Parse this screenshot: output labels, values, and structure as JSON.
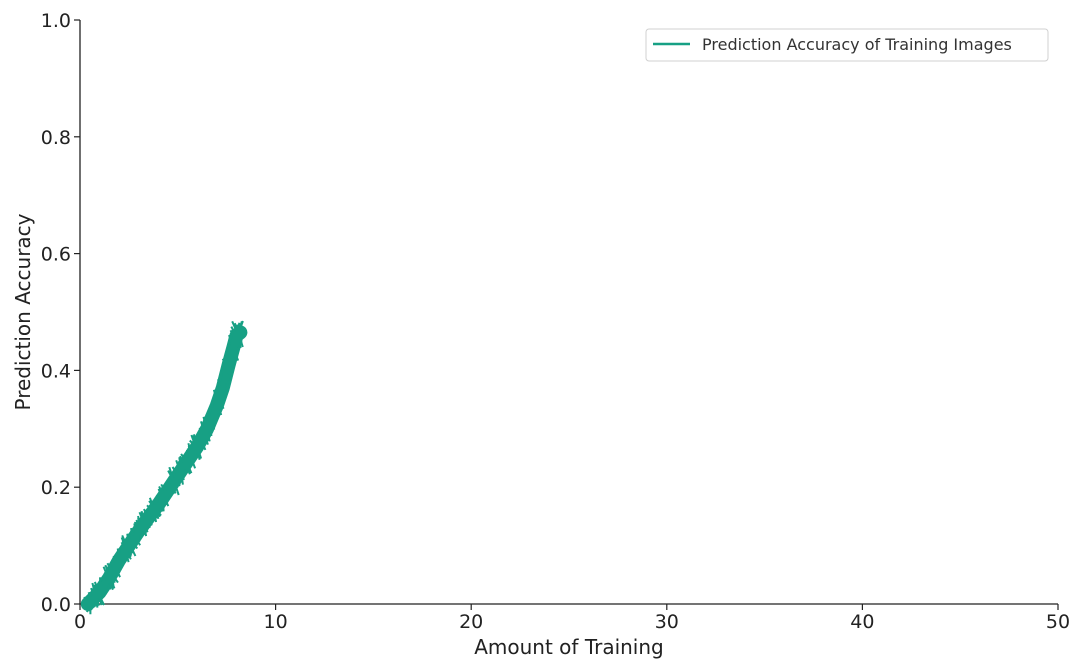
{
  "chart_data": {
    "type": "line",
    "title": "",
    "xlabel": "Amount of Training",
    "ylabel": "Prediction Accuracy",
    "xlim": [
      0,
      50
    ],
    "ylim": [
      0,
      1.0
    ],
    "xticks": [
      0,
      10,
      20,
      30,
      40,
      50
    ],
    "xtick_labels": [
      "0",
      "10",
      "20",
      "30",
      "40",
      "50"
    ],
    "yticks": [
      0.0,
      0.2,
      0.4,
      0.6,
      0.8,
      1.0
    ],
    "ytick_labels": [
      "0.0",
      "0.2",
      "0.4",
      "0.6",
      "0.8",
      "1.0"
    ],
    "grid": false,
    "legend_position": "top-right",
    "series": [
      {
        "name": "Prediction Accuracy of Training Images",
        "color": "#17a084",
        "band_halfwidth": 0.012,
        "x": [
          0.4,
          1.0,
          1.5,
          2.0,
          2.5,
          3.0,
          3.5,
          4.0,
          4.5,
          5.0,
          5.5,
          6.0,
          6.5,
          7.0,
          7.3,
          7.6,
          7.85,
          8.0,
          8.2
        ],
        "y": [
          0.0,
          0.02,
          0.045,
          0.075,
          0.1,
          0.125,
          0.148,
          0.17,
          0.195,
          0.22,
          0.245,
          0.27,
          0.3,
          0.34,
          0.37,
          0.41,
          0.44,
          0.46,
          0.465
        ]
      }
    ]
  }
}
